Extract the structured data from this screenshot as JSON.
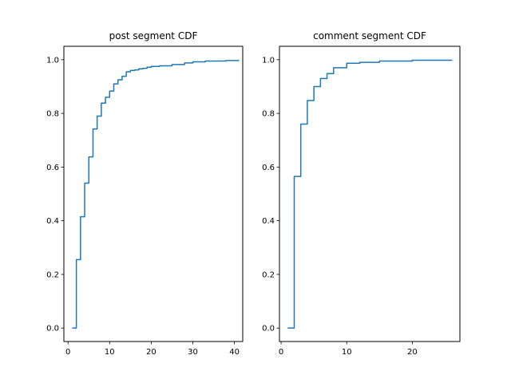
{
  "chart_data": [
    {
      "type": "line",
      "step": "post",
      "title": "post segment CDF",
      "xlabel": "",
      "ylabel": "",
      "xlim": [
        -1,
        42
      ],
      "ylim": [
        -0.05,
        1.05
      ],
      "xticks": [
        0,
        10,
        20,
        30,
        40
      ],
      "xtick_labels": [
        "0",
        "10",
        "20",
        "30",
        "40"
      ],
      "yticks": [
        0.0,
        0.2,
        0.4,
        0.6,
        0.8,
        1.0
      ],
      "ytick_labels": [
        "0.0",
        "0.2",
        "0.4",
        "0.6",
        "0.8",
        "1.0"
      ],
      "grid": false,
      "color": "#1f77b4",
      "series": [
        {
          "x": [
            1,
            2,
            3,
            4,
            5,
            6,
            7,
            8,
            9,
            10,
            11,
            12,
            13,
            14,
            15,
            16,
            17,
            18,
            19,
            20,
            22,
            25,
            28,
            30,
            33,
            38,
            41
          ],
          "y": [
            0.0,
            0.255,
            0.415,
            0.54,
            0.638,
            0.742,
            0.79,
            0.838,
            0.86,
            0.883,
            0.91,
            0.925,
            0.938,
            0.955,
            0.96,
            0.962,
            0.966,
            0.968,
            0.972,
            0.975,
            0.977,
            0.982,
            0.988,
            0.992,
            0.995,
            0.997,
            1.0
          ]
        }
      ]
    },
    {
      "type": "line",
      "step": "post",
      "title": "comment segment CDF",
      "xlabel": "",
      "ylabel": "",
      "xlim": [
        -0.25,
        27.25
      ],
      "ylim": [
        -0.05,
        1.05
      ],
      "xticks": [
        0,
        10,
        20
      ],
      "xtick_labels": [
        "0",
        "10",
        "20"
      ],
      "yticks": [
        0.0,
        0.2,
        0.4,
        0.6,
        0.8,
        1.0
      ],
      "ytick_labels": [
        "0.0",
        "0.2",
        "0.4",
        "0.6",
        "0.8",
        "1.0"
      ],
      "grid": false,
      "color": "#1f77b4",
      "series": [
        {
          "x": [
            1,
            2,
            3,
            4,
            5,
            6,
            7,
            8,
            10,
            12,
            15,
            20,
            26
          ],
          "y": [
            0.0,
            0.565,
            0.76,
            0.848,
            0.9,
            0.93,
            0.948,
            0.97,
            0.987,
            0.99,
            0.995,
            0.998,
            1.0
          ]
        }
      ]
    }
  ]
}
